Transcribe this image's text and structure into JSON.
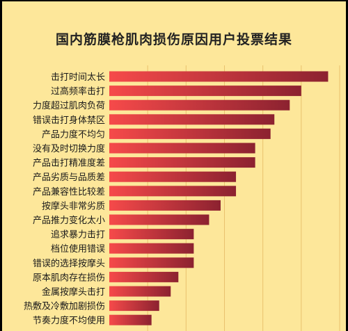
{
  "chart_data": {
    "type": "bar",
    "orientation": "horizontal",
    "title": "国内筋膜枪肌肉损伤原因用户投票结果",
    "xlabel": "",
    "ylabel": "",
    "grid": true,
    "categories": [
      "击打时间太长",
      "过高频率击打",
      "力度超过肌肉负荷",
      "错误击打身体禁区",
      "产品力度不均匀",
      "没有及时切换力度",
      "产品击打精准度差",
      "产品劣质与品质差",
      "产品兼容性比较差",
      "按摩头非常劣质",
      "产品推力变化太小",
      "追求暴力击打",
      "档位使用错误",
      "错误的选择按摩头",
      "原本肌肉存在损伤",
      "金属按摩头击打",
      "热敷及冷敷加剧损伤",
      "节奏力度不均使用"
    ],
    "values": [
      57,
      50,
      47,
      43,
      42,
      38,
      38,
      33,
      33,
      29,
      26,
      22,
      22,
      22,
      18,
      16,
      13,
      11
    ],
    "xlim": [
      0,
      60
    ],
    "colors": {
      "bar_start": "#f64a4a",
      "bar_end": "#8c2230",
      "grid": "#e9c26e",
      "background": "#fde79a"
    }
  }
}
